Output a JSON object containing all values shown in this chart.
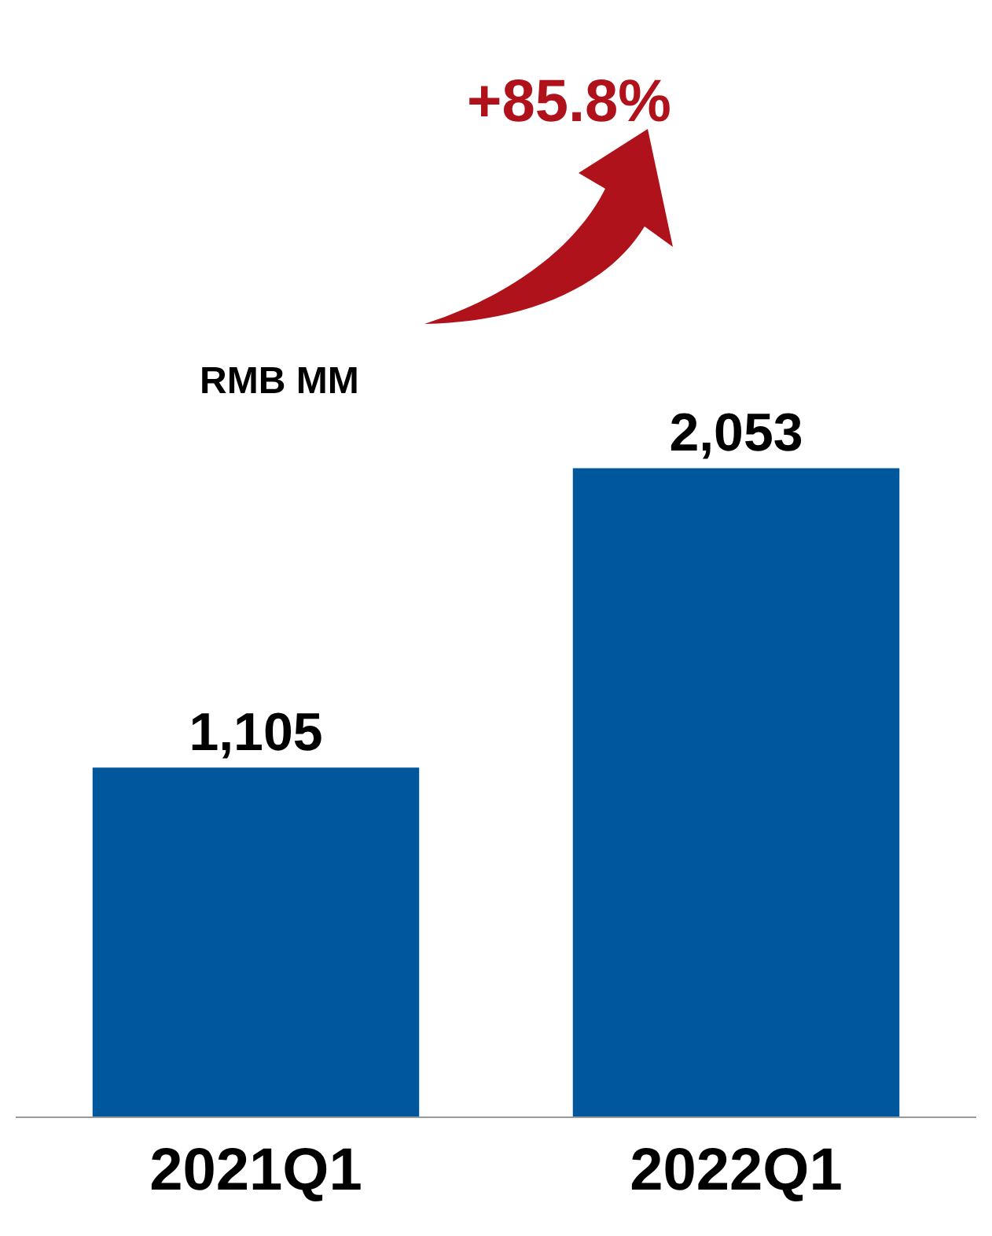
{
  "chart_data": {
    "type": "bar",
    "categories": [
      "2021Q1",
      "2022Q1"
    ],
    "values": [
      1105,
      2053
    ],
    "color": "#00579b",
    "value_labels": [
      "1,105",
      "2,053"
    ],
    "annotations": [
      "+85.8%",
      "RMB MM"
    ],
    "grid": false,
    "legend": false,
    "tick_labels": "x"
  }
}
